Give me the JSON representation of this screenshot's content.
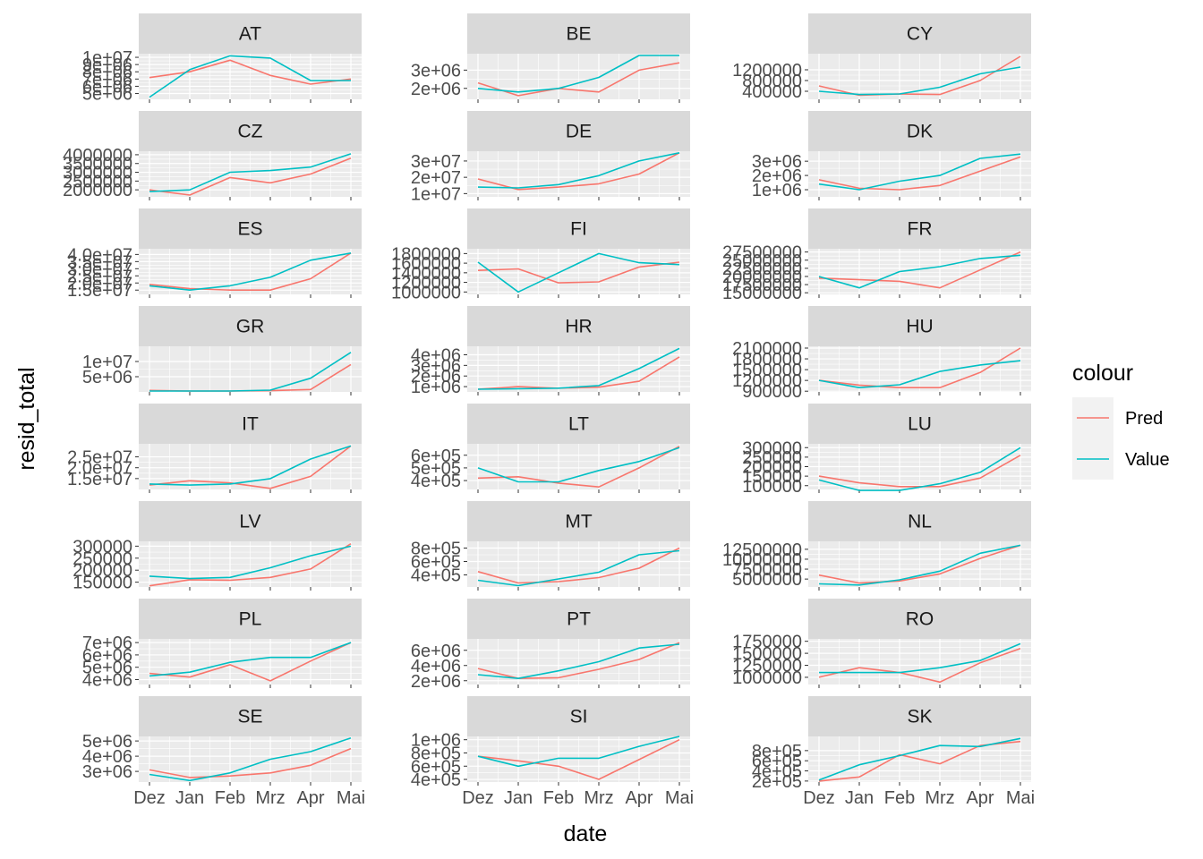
{
  "colors": {
    "Pred": "#F8766D",
    "Value": "#00BFC4",
    "panel_bg": "#EBEBEB",
    "strip_bg": "#D9D9D9",
    "grid": "#FFFFFF"
  },
  "chart_data": {
    "type": "line",
    "facet_layout": "wrap, 3 columns, free y scales",
    "xlabel": "date",
    "ylabel": "resid_total",
    "categories": [
      "Dez",
      "Jan",
      "Feb",
      "Mrz",
      "Apr",
      "Mai"
    ],
    "legend": {
      "title": "colour",
      "placement": "right",
      "entries": [
        "Pred",
        "Value"
      ]
    },
    "panels": [
      {
        "title": "AT",
        "ylim": [
          4200000,
          10500000
        ],
        "yticks": [
          5000000,
          6000000,
          7000000,
          8000000,
          9000000,
          10000000
        ],
        "yticklabels": [
          "5e+06",
          "6e+06",
          "7e+06",
          "8e+06",
          "9e+06",
          "1e+07"
        ],
        "series": [
          {
            "name": "Pred",
            "values": [
              7200000,
              8000000,
              9600000,
              7500000,
              6300000,
              7000000
            ]
          },
          {
            "name": "Value",
            "values": [
              4500000,
              8300000,
              10200000,
              9900000,
              6800000,
              6800000
            ]
          }
        ]
      },
      {
        "title": "BE",
        "ylim": [
          1400000,
          3900000
        ],
        "yticks": [
          2000000,
          3000000
        ],
        "yticklabels": [
          "2e+06",
          "3e+06"
        ],
        "series": [
          {
            "name": "Pred",
            "values": [
              2300000,
              1600000,
              2000000,
              1800000,
              3000000,
              3400000
            ]
          },
          {
            "name": "Value",
            "values": [
              2000000,
              1800000,
              2000000,
              2600000,
              3800000,
              3800000
            ]
          }
        ]
      },
      {
        "title": "CY",
        "ylim": [
          100000,
          1800000
        ],
        "yticks": [
          400000,
          800000,
          1200000
        ],
        "yticklabels": [
          "400000",
          "800000",
          "1200000"
        ],
        "series": [
          {
            "name": "Pred",
            "values": [
              600000,
              250000,
              300000,
              280000,
              800000,
              1700000
            ]
          },
          {
            "name": "Value",
            "values": [
              400000,
              280000,
              300000,
              550000,
              1050000,
              1300000
            ]
          }
        ]
      },
      {
        "title": "CZ",
        "ylim": [
          1600000,
          4200000
        ],
        "yticks": [
          2000000,
          2500000,
          3000000,
          3500000,
          4000000
        ],
        "yticklabels": [
          "2000000",
          "2500000",
          "3000000",
          "3500000",
          "4000000"
        ],
        "series": [
          {
            "name": "Pred",
            "values": [
              2000000,
              1700000,
              2700000,
              2400000,
              2900000,
              3800000
            ]
          },
          {
            "name": "Value",
            "values": [
              1900000,
              2000000,
              3000000,
              3100000,
              3300000,
              4050000
            ]
          }
        ]
      },
      {
        "title": "DE",
        "ylim": [
          8000000,
          36000000
        ],
        "yticks": [
          10000000,
          20000000,
          30000000
        ],
        "yticklabels": [
          "1e+07",
          "2e+07",
          "3e+07"
        ],
        "series": [
          {
            "name": "Pred",
            "values": [
              19000000,
              12500000,
              14000000,
              16000000,
              22000000,
              35000000
            ]
          },
          {
            "name": "Value",
            "values": [
              14000000,
              13500000,
              15500000,
              21000000,
              30000000,
              35000000
            ]
          }
        ]
      },
      {
        "title": "DK",
        "ylim": [
          500000,
          3700000
        ],
        "yticks": [
          1000000,
          2000000,
          3000000
        ],
        "yticklabels": [
          "1e+06",
          "2e+06",
          "3e+06"
        ],
        "series": [
          {
            "name": "Pred",
            "values": [
              1700000,
              1100000,
              1000000,
              1300000,
              2300000,
              3300000
            ]
          },
          {
            "name": "Value",
            "values": [
              1400000,
              1000000,
              1600000,
              2000000,
              3200000,
              3500000
            ]
          }
        ]
      },
      {
        "title": "ES",
        "ylim": [
          12000000,
          44000000
        ],
        "yticks": [
          15000000,
          20000000,
          25000000,
          30000000,
          35000000,
          40000000
        ],
        "yticklabels": [
          "1.5e+07",
          "2.0e+07",
          "2.5e+07",
          "3.0e+07",
          "3.5e+07",
          "4.0e+07"
        ],
        "series": [
          {
            "name": "Pred",
            "values": [
              19000000,
              16000000,
              15000000,
              15000000,
              23000000,
              41000000
            ]
          },
          {
            "name": "Value",
            "values": [
              18000000,
              15000000,
              18000000,
              24000000,
              36000000,
              41000000
            ]
          }
        ]
      },
      {
        "title": "FI",
        "ylim": [
          950000,
          1900000
        ],
        "yticks": [
          1000000,
          1200000,
          1400000,
          1600000,
          1800000
        ],
        "yticklabels": [
          "1000000",
          "1200000",
          "1400000",
          "1600000",
          "1800000"
        ],
        "series": [
          {
            "name": "Pred",
            "values": [
              1450000,
              1480000,
              1190000,
              1210000,
              1520000,
              1620000
            ]
          },
          {
            "name": "Value",
            "values": [
              1620000,
              1000000,
              1400000,
              1800000,
              1610000,
              1570000
            ]
          }
        ]
      },
      {
        "title": "FR",
        "ylim": [
          14500000,
          28500000
        ],
        "yticks": [
          15000000,
          17500000,
          20000000,
          22500000,
          25000000,
          27500000
        ],
        "yticklabels": [
          "15000000",
          "17500000",
          "20000000",
          "22500000",
          "25000000",
          "27500000"
        ],
        "series": [
          {
            "name": "Pred",
            "values": [
              19500000,
              19000000,
              18500000,
              16500000,
              22000000,
              27500000
            ]
          },
          {
            "name": "Value",
            "values": [
              20000000,
              16500000,
              21500000,
              23000000,
              25500000,
              26500000
            ]
          }
        ]
      },
      {
        "title": "GR",
        "ylim": [
          0,
          15000000
        ],
        "yticks": [
          5000000,
          10000000
        ],
        "yticklabels": [
          "5e+06",
          "1e+07"
        ],
        "series": [
          {
            "name": "Pred",
            "values": [
              500000,
              300000,
              300000,
              400000,
              800000,
              9000000
            ]
          },
          {
            "name": "Value",
            "values": [
              300000,
              300000,
              300000,
              600000,
              4500000,
              13000000
            ]
          }
        ]
      },
      {
        "title": "HR",
        "ylim": [
          500000,
          4800000
        ],
        "yticks": [
          1000000,
          2000000,
          3000000,
          4000000
        ],
        "yticklabels": [
          "1e+06",
          "2e+06",
          "3e+06",
          "4e+06"
        ],
        "series": [
          {
            "name": "Pred",
            "values": [
              750000,
              1000000,
              850000,
              950000,
              1500000,
              3800000
            ]
          },
          {
            "name": "Value",
            "values": [
              750000,
              800000,
              850000,
              1100000,
              2700000,
              4600000
            ]
          }
        ]
      },
      {
        "title": "HU",
        "ylim": [
          880000,
          2150000
        ],
        "yticks": [
          900000,
          1200000,
          1500000,
          1800000,
          2100000
        ],
        "yticklabels": [
          "900000",
          "1200000",
          "1500000",
          "1800000",
          "2100000"
        ],
        "series": [
          {
            "name": "Pred",
            "values": [
              1200000,
              1070000,
              1000000,
              1000000,
              1420000,
              2100000
            ]
          },
          {
            "name": "Value",
            "values": [
              1200000,
              1000000,
              1080000,
              1450000,
              1630000,
              1750000
            ]
          }
        ]
      },
      {
        "title": "IT",
        "ylim": [
          10000000,
          31000000
        ],
        "yticks": [
          15000000,
          20000000,
          25000000
        ],
        "yticklabels": [
          "1.5e+07",
          "2.0e+07",
          "2.5e+07"
        ],
        "series": [
          {
            "name": "Pred",
            "values": [
              12000000,
              14000000,
              13000000,
              10500000,
              16000000,
              30000000
            ]
          },
          {
            "name": "Value",
            "values": [
              12500000,
              12000000,
              12500000,
              15000000,
              24000000,
              30000000
            ]
          }
        ]
      },
      {
        "title": "LT",
        "ylim": [
          330000,
          690000
        ],
        "yticks": [
          400000,
          500000,
          600000
        ],
        "yticklabels": [
          "4e+05",
          "5e+05",
          "6e+05"
        ],
        "series": [
          {
            "name": "Pred",
            "values": [
              420000,
              430000,
              380000,
              350000,
              500000,
              670000
            ]
          },
          {
            "name": "Value",
            "values": [
              500000,
              390000,
              390000,
              480000,
              550000,
              660000
            ]
          }
        ]
      },
      {
        "title": "LU",
        "ylim": [
          80000,
          320000
        ],
        "yticks": [
          100000,
          150000,
          200000,
          250000,
          300000
        ],
        "yticklabels": [
          "100000",
          "150000",
          "200000",
          "250000",
          "300000"
        ],
        "series": [
          {
            "name": "Pred",
            "values": [
              150000,
              115000,
              95000,
              95000,
              140000,
              260000
            ]
          },
          {
            "name": "Value",
            "values": [
              130000,
              75000,
              75000,
              110000,
              170000,
              300000
            ]
          }
        ]
      },
      {
        "title": "LV",
        "ylim": [
          130000,
          320000
        ],
        "yticks": [
          150000,
          200000,
          250000,
          300000
        ],
        "yticklabels": [
          "150000",
          "200000",
          "250000",
          "300000"
        ],
        "series": [
          {
            "name": "Pred",
            "values": [
              135000,
              160000,
              158000,
              170000,
              205000,
              310000
            ]
          },
          {
            "name": "Value",
            "values": [
              175000,
              165000,
              170000,
              210000,
              260000,
              300000
            ]
          }
        ]
      },
      {
        "title": "MT",
        "ylim": [
          220000,
          900000
        ],
        "yticks": [
          400000,
          600000,
          800000
        ],
        "yticklabels": [
          "4e+05",
          "6e+05",
          "8e+05"
        ],
        "series": [
          {
            "name": "Pred",
            "values": [
              450000,
              280000,
              300000,
              360000,
              500000,
              800000
            ]
          },
          {
            "name": "Value",
            "values": [
              320000,
              240000,
              340000,
              440000,
              700000,
              760000
            ]
          }
        ]
      },
      {
        "title": "NL",
        "ylim": [
          3000000,
          14500000
        ],
        "yticks": [
          5000000,
          7500000,
          10000000,
          12500000
        ],
        "yticklabels": [
          "5000000",
          "7500000",
          "10000000",
          "12500000"
        ],
        "series": [
          {
            "name": "Pred",
            "values": [
              6000000,
              4000000,
              4500000,
              6300000,
              10200000,
              13500000
            ]
          },
          {
            "name": "Value",
            "values": [
              3800000,
              3500000,
              4800000,
              7000000,
              11500000,
              13500000
            ]
          }
        ]
      },
      {
        "title": "PL",
        "ylim": [
          3600000,
          7300000
        ],
        "yticks": [
          4000000,
          5000000,
          6000000,
          7000000
        ],
        "yticklabels": [
          "4e+06",
          "5e+06",
          "6e+06",
          "7e+06"
        ],
        "series": [
          {
            "name": "Pred",
            "values": [
              4500000,
              4200000,
              5200000,
              3900000,
              5500000,
              7000000
            ]
          },
          {
            "name": "Value",
            "values": [
              4300000,
              4600000,
              5400000,
              5800000,
              5800000,
              7000000
            ]
          }
        ]
      },
      {
        "title": "PT",
        "ylim": [
          1500000,
          7500000
        ],
        "yticks": [
          2000000,
          4000000,
          6000000
        ],
        "yticklabels": [
          "2e+06",
          "4e+06",
          "6e+06"
        ],
        "series": [
          {
            "name": "Pred",
            "values": [
              3600000,
              2300000,
              2400000,
              3500000,
              4800000,
              7000000
            ]
          },
          {
            "name": "Value",
            "values": [
              2800000,
              2300000,
              3300000,
              4500000,
              6300000,
              6800000
            ]
          }
        ]
      },
      {
        "title": "RO",
        "ylim": [
          850000,
          1800000
        ],
        "yticks": [
          1000000,
          1250000,
          1500000,
          1750000
        ],
        "yticklabels": [
          "1000000",
          "1250000",
          "1500000",
          "1750000"
        ],
        "series": [
          {
            "name": "Pred",
            "values": [
              1000000,
              1200000,
              1100000,
              900000,
              1300000,
              1600000
            ]
          },
          {
            "name": "Value",
            "values": [
              1100000,
              1100000,
              1100000,
              1200000,
              1350000,
              1700000
            ]
          }
        ]
      },
      {
        "title": "SE",
        "ylim": [
          2300000,
          5300000
        ],
        "yticks": [
          3000000,
          4000000,
          5000000
        ],
        "yticklabels": [
          "3e+06",
          "4e+06",
          "5e+06"
        ],
        "series": [
          {
            "name": "Pred",
            "values": [
              3100000,
              2600000,
              2700000,
              2900000,
              3400000,
              4500000
            ]
          },
          {
            "name": "Value",
            "values": [
              2800000,
              2400000,
              2900000,
              3800000,
              4300000,
              5200000
            ]
          }
        ]
      },
      {
        "title": "SI",
        "ylim": [
          360000,
          1050000
        ],
        "yticks": [
          400000,
          600000,
          800000,
          1000000
        ],
        "yticklabels": [
          "4e+05",
          "6e+05",
          "8e+05",
          "1e+06"
        ],
        "series": [
          {
            "name": "Pred",
            "values": [
              750000,
              680000,
              600000,
              400000,
              700000,
              1000000
            ]
          },
          {
            "name": "Value",
            "values": [
              750000,
              600000,
              720000,
              720000,
              900000,
              1050000
            ]
          }
        ]
      },
      {
        "title": "SK",
        "ylim": [
          180000,
          1080000
        ],
        "yticks": [
          200000,
          400000,
          600000,
          800000
        ],
        "yticklabels": [
          "2e+05",
          "4e+05",
          "6e+05",
          "8e+05"
        ],
        "series": [
          {
            "name": "Pred",
            "values": [
              200000,
              280000,
              720000,
              540000,
              900000,
              980000
            ]
          },
          {
            "name": "Value",
            "values": [
              220000,
              520000,
              700000,
              900000,
              880000,
              1040000
            ]
          }
        ]
      }
    ]
  }
}
